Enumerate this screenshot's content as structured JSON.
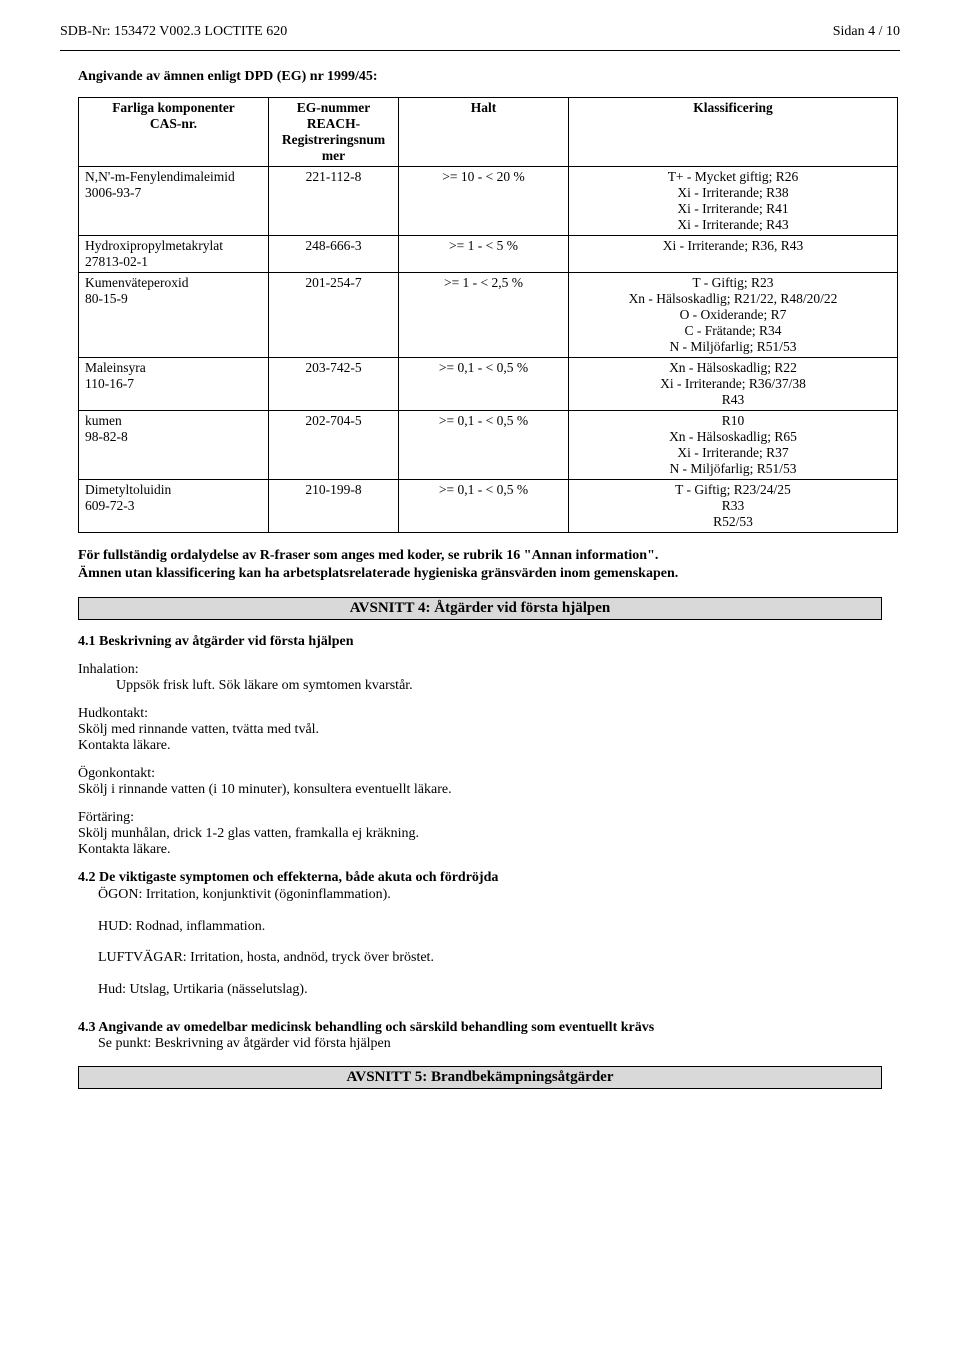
{
  "header": {
    "left": "SDB-Nr: 153472   V002.3   LOCTITE 620",
    "right": "Sidan 4 / 10"
  },
  "intro_title": "Angivande av ämnen enligt DPD (EG) nr 1999/45:",
  "table": {
    "headers": {
      "c1a": "Farliga komponenter",
      "c1b": "CAS-nr.",
      "c2a": "EG-nummer",
      "c2b": "REACH-",
      "c2c": "Registreringsnum",
      "c2d": "mer",
      "c3": "Halt",
      "c4": "Klassificering"
    },
    "rows": [
      {
        "name": "N,N'-m-Fenylendimaleimid",
        "cas": "3006-93-7",
        "eg": "221-112-8",
        "halt": ">=  10 - <  20  %",
        "cls": [
          "T+ - Mycket giftig;  R26",
          "Xi - Irriterande;  R38",
          "Xi - Irriterande;  R41",
          "Xi - Irriterande;  R43"
        ]
      },
      {
        "name": "Hydroxipropylmetakrylat",
        "cas": "27813-02-1",
        "eg": "248-666-3",
        "halt": ">=   1 - <   5  %",
        "cls": [
          "Xi - Irriterande;  R36, R43"
        ]
      },
      {
        "name": "Kumenväteperoxid",
        "cas": "80-15-9",
        "eg": "201-254-7",
        "halt": ">=   1 - <   2,5  %",
        "cls": [
          "T - Giftig;  R23",
          "Xn - Hälsoskadlig;  R21/22, R48/20/22",
          "O - Oxiderande;  R7",
          "C - Frätande;  R34",
          "N - Miljöfarlig;  R51/53"
        ]
      },
      {
        "name": "Maleinsyra",
        "cas": "110-16-7",
        "eg": "203-742-5",
        "halt": ">=   0,1 - <   0,5  %",
        "cls": [
          "Xn - Hälsoskadlig;  R22",
          "Xi - Irriterande;  R36/37/38",
          "R43"
        ]
      },
      {
        "name": "kumen",
        "cas": "98-82-8",
        "eg": "202-704-5",
        "halt": ">=   0,1 - <   0,5  %",
        "cls": [
          "R10",
          "Xn - Hälsoskadlig;  R65",
          "Xi - Irriterande;  R37",
          "N - Miljöfarlig;  R51/53"
        ]
      },
      {
        "name": "Dimetyltoluidin",
        "cas": "609-72-3",
        "eg": "210-199-8",
        "halt": ">=   0,1 - <   0,5  %",
        "cls": [
          "T - Giftig;  R23/24/25",
          "R33",
          "R52/53"
        ]
      }
    ]
  },
  "notes": {
    "l1": "För fullständig ordalydelse av  R-fraser som anges med koder, se rubrik 16 \"Annan information\".",
    "l2": "Ämnen utan klassificering kan ha arbetsplatsrelaterade hygieniska gränsvärden inom gemenskapen."
  },
  "avs4": {
    "title": "AVSNITT 4: Åtgärder vid första hjälpen",
    "s41": "4.1 Beskrivning av åtgärder vid första hjälpen",
    "inh_lbl": "Inhalation:",
    "inh_txt": "Uppsök frisk luft. Sök läkare om symtomen kvarstår.",
    "hud_lbl": "Hudkontakt:",
    "hud_txt1": "Skölj med rinnande vatten, tvätta med tvål.",
    "hud_txt2": "Kontakta läkare.",
    "ogon_lbl": "Ögonkontakt:",
    "ogon_txt": "Skölj i rinnande vatten (i 10 minuter), konsultera eventuellt läkare.",
    "fort_lbl": "Förtäring:",
    "fort_txt1": "Skölj munhålan, drick 1-2 glas vatten, framkalla ej kräkning.",
    "fort_txt2": "Kontakta läkare.",
    "s42_lbl": "4.2 De viktigaste symptomen och effekterna, både akuta och fördröjda",
    "s42_l1": "ÖGON: Irritation, konjunktivit (ögoninflammation).",
    "s42_l2": "HUD: Rodnad, inflammation.",
    "s42_l3": "LUFTVÄGAR: Irritation, hosta, andnöd, tryck över bröstet.",
    "s42_l4": "Hud: Utslag, Urtikaria (nässelutslag).",
    "s43_lbl": "4.3 Angivande av omedelbar medicinsk behandling och särskild behandling som eventuellt krävs",
    "s43_txt": "Se punkt: Beskrivning av åtgärder vid första hjälpen"
  },
  "avs5": {
    "title": "AVSNITT 5: Brandbekämpningsåtgärder"
  }
}
